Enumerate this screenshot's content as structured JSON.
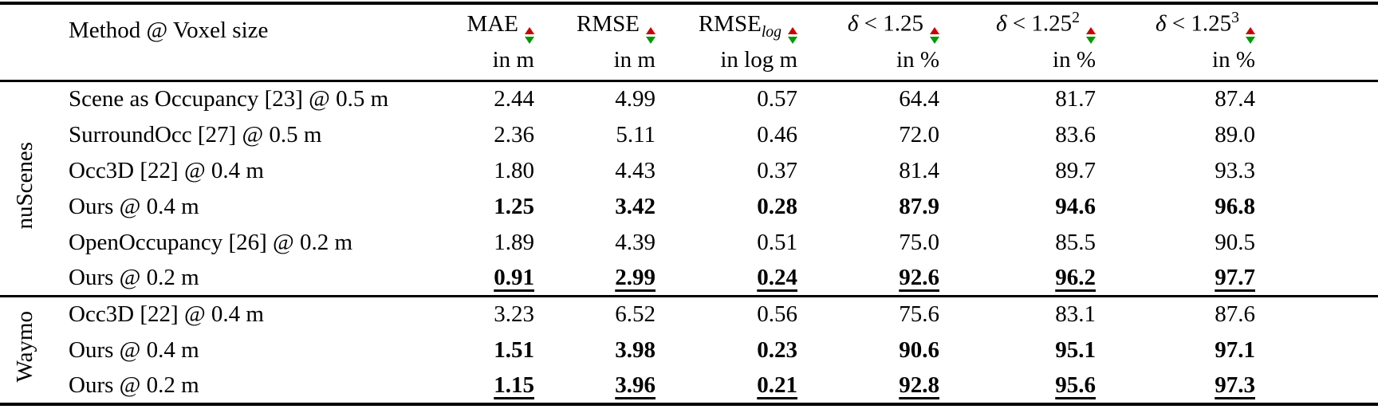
{
  "page": {
    "background_color": "#ffffff",
    "text_color": "#000000",
    "rule_color": "#000000"
  },
  "table": {
    "method_header": "Method @ Voxel size",
    "columns": [
      {
        "symbol": "",
        "name": "MAE",
        "sub": "",
        "sup": "",
        "unit": "in m",
        "arrow_up_color": "#cc0000",
        "arrow_down_color": "#009900"
      },
      {
        "symbol": "",
        "name": "RMSE",
        "sub": "",
        "sup": "",
        "unit": "in m",
        "arrow_up_color": "#cc0000",
        "arrow_down_color": "#009900"
      },
      {
        "symbol": "",
        "name": "RMSE",
        "sub": "log",
        "sup": "",
        "unit": "in log m",
        "arrow_up_color": "#cc0000",
        "arrow_down_color": "#009900"
      },
      {
        "symbol": "δ",
        "name": " < 1.25",
        "sub": "",
        "sup": "",
        "unit": "in %",
        "arrow_up_color": "#cc0000",
        "arrow_down_color": "#009900"
      },
      {
        "symbol": "δ",
        "name": " < 1.25",
        "sub": "",
        "sup": "2",
        "unit": "in %",
        "arrow_up_color": "#cc0000",
        "arrow_down_color": "#009900"
      },
      {
        "symbol": "δ",
        "name": " < 1.25",
        "sub": "",
        "sup": "3",
        "unit": "in %",
        "arrow_up_color": "#cc0000",
        "arrow_down_color": "#009900"
      }
    ],
    "groups": [
      {
        "label": "nuScenes"
      },
      {
        "label": "Waymo"
      }
    ],
    "rows": [
      {
        "method": "Scene as Occupancy [23] @ 0.5 m",
        "values": [
          "2.44",
          "4.99",
          "0.57",
          "64.4",
          "81.7",
          "87.4"
        ],
        "emphasis": ""
      },
      {
        "method": "SurroundOcc [27] @ 0.5 m",
        "values": [
          "2.36",
          "5.11",
          "0.46",
          "72.0",
          "83.6",
          "89.0"
        ],
        "emphasis": ""
      },
      {
        "method": "Occ3D [22] @ 0.4 m",
        "values": [
          "1.80",
          "4.43",
          "0.37",
          "81.4",
          "89.7",
          "93.3"
        ],
        "emphasis": ""
      },
      {
        "method": "Ours @ 0.4 m",
        "values": [
          "1.25",
          "3.42",
          "0.28",
          "87.9",
          "94.6",
          "96.8"
        ],
        "emphasis": "bold"
      },
      {
        "method": "OpenOccupancy [26] @ 0.2 m",
        "values": [
          "1.89",
          "4.39",
          "0.51",
          "75.0",
          "85.5",
          "90.5"
        ],
        "emphasis": ""
      },
      {
        "method": "Ours @ 0.2 m",
        "values": [
          "0.91",
          "2.99",
          "0.24",
          "92.6",
          "96.2",
          "97.7"
        ],
        "emphasis": "bold-underline"
      },
      {
        "method": "Occ3D [22] @ 0.4 m",
        "values": [
          "3.23",
          "6.52",
          "0.56",
          "75.6",
          "83.1",
          "87.6"
        ],
        "emphasis": ""
      },
      {
        "method": "Ours @ 0.4 m",
        "values": [
          "1.51",
          "3.98",
          "0.23",
          "90.6",
          "95.1",
          "97.1"
        ],
        "emphasis": "bold"
      },
      {
        "method": "Ours @ 0.2 m",
        "values": [
          "1.15",
          "3.96",
          "0.21",
          "92.8",
          "95.6",
          "97.3"
        ],
        "emphasis": "bold-underline"
      }
    ]
  }
}
